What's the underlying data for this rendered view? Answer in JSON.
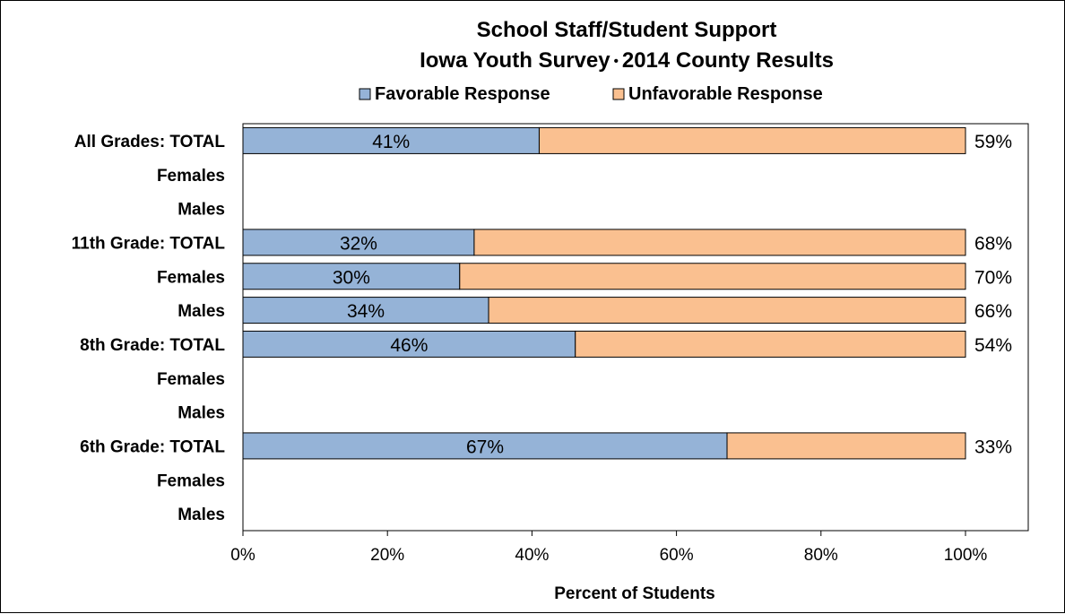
{
  "chart_data": {
    "type": "bar",
    "orientation": "horizontal",
    "stacked": true,
    "title": "School Staff/Student Support",
    "subtitle": "Iowa Youth Survey",
    "subtitle_right": "2014 County Results",
    "subtitle_separator": "•",
    "xlabel": "Percent of Students",
    "ylabel": "",
    "xlim": [
      0,
      100
    ],
    "x_ticks": [
      "0%",
      "20%",
      "40%",
      "60%",
      "80%",
      "100%"
    ],
    "grid": false,
    "legend_position": "top",
    "categories": [
      "All Grades:  TOTAL",
      "Females",
      "Males",
      "11th Grade:  TOTAL",
      "Females",
      "Males",
      "8th Grade:  TOTAL",
      "Females",
      "Males",
      "6th Grade:  TOTAL",
      "Females",
      "Males"
    ],
    "series": [
      {
        "name": "Favorable Response",
        "color": "#95b3d7",
        "values": [
          41,
          null,
          null,
          32,
          30,
          34,
          46,
          null,
          null,
          67,
          null,
          null
        ],
        "labels": [
          "41%",
          "",
          "",
          "32%",
          "30%",
          "34%",
          "46%",
          "",
          "",
          "67%",
          "",
          ""
        ]
      },
      {
        "name": "Unfavorable Response",
        "color": "#fac090",
        "values": [
          59,
          null,
          null,
          68,
          70,
          66,
          54,
          null,
          null,
          33,
          null,
          null
        ],
        "labels": [
          "59%",
          "",
          "",
          "68%",
          "70%",
          "66%",
          "54%",
          "",
          "",
          "33%",
          "",
          ""
        ]
      }
    ]
  }
}
